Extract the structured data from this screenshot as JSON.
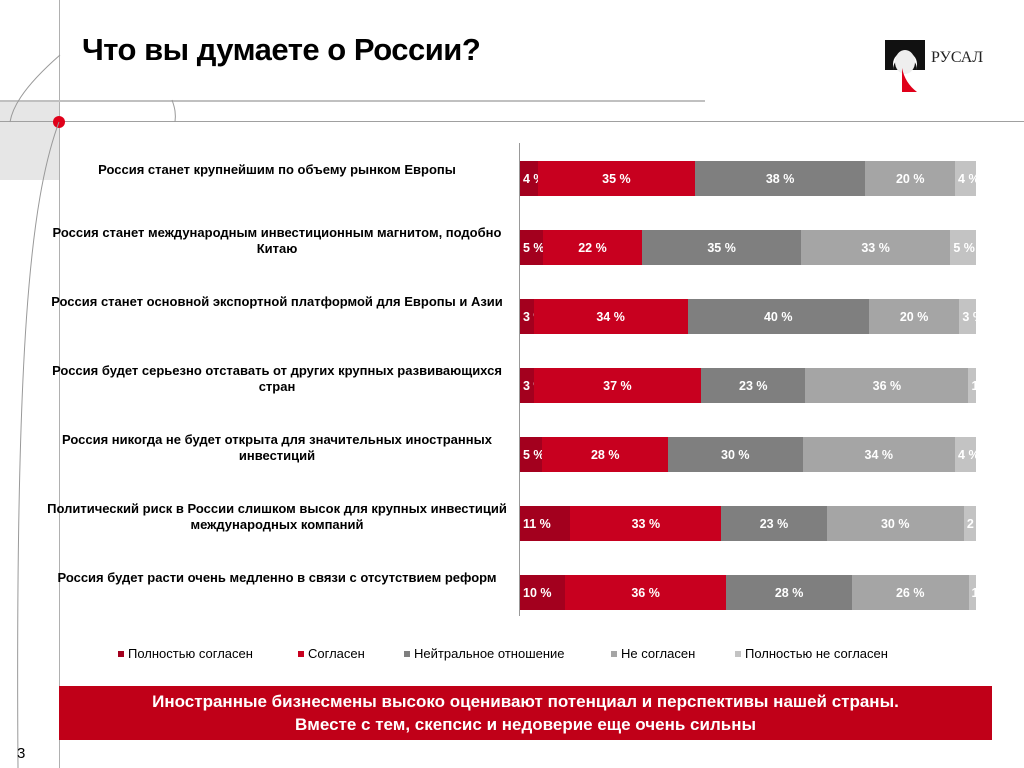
{
  "header": {
    "title": "Что вы думаете о России?",
    "logo_text": "РУСАЛ"
  },
  "page_number": "3",
  "banner": {
    "line1": "Иностранные бизнесмены высоко оценивают потенциал и перспективы нашей страны.",
    "line2": "Вместе с тем, скепсис и недоверие еще очень сильны"
  },
  "chart_data": {
    "type": "bar",
    "orientation": "horizontal-stacked",
    "unit": "%",
    "categories": [
      "Россия станет крупнейшим по объему рынком Европы",
      "Россия станет международным инвестиционным магнитом, подобно Китаю",
      "Россия станет основной экспортной платформой для Европы и Азии",
      "Россия будет серьезно отставать от других крупных развивающихся стран",
      "Россия никогда не будет открыта для значительных иностранных инвестиций",
      "Политический риск в России слишком высок для крупных инвестиций международных компаний",
      "Россия будет расти очень медленно в связи с отсутствием реформ"
    ],
    "series": [
      {
        "name": "Полностью согласен",
        "color": "#a3001e",
        "values": [
          4,
          5,
          3,
          3,
          5,
          11,
          10
        ]
      },
      {
        "name": "Согласен",
        "color": "#c8001f",
        "values": [
          35,
          22,
          34,
          37,
          28,
          33,
          36
        ]
      },
      {
        "name": "Нейтральное отношение",
        "color": "#7f7f7f",
        "values": [
          38,
          35,
          40,
          23,
          30,
          23,
          28
        ]
      },
      {
        "name": "Не согласен",
        "color": "#a5a5a5",
        "values": [
          20,
          33,
          20,
          36,
          34,
          30,
          26
        ]
      },
      {
        "name": "Полностью не согласен",
        "color": "#c3c3c3",
        "values": [
          4,
          5,
          3,
          1,
          4,
          2,
          1
        ]
      }
    ],
    "legend_position": "bottom"
  }
}
